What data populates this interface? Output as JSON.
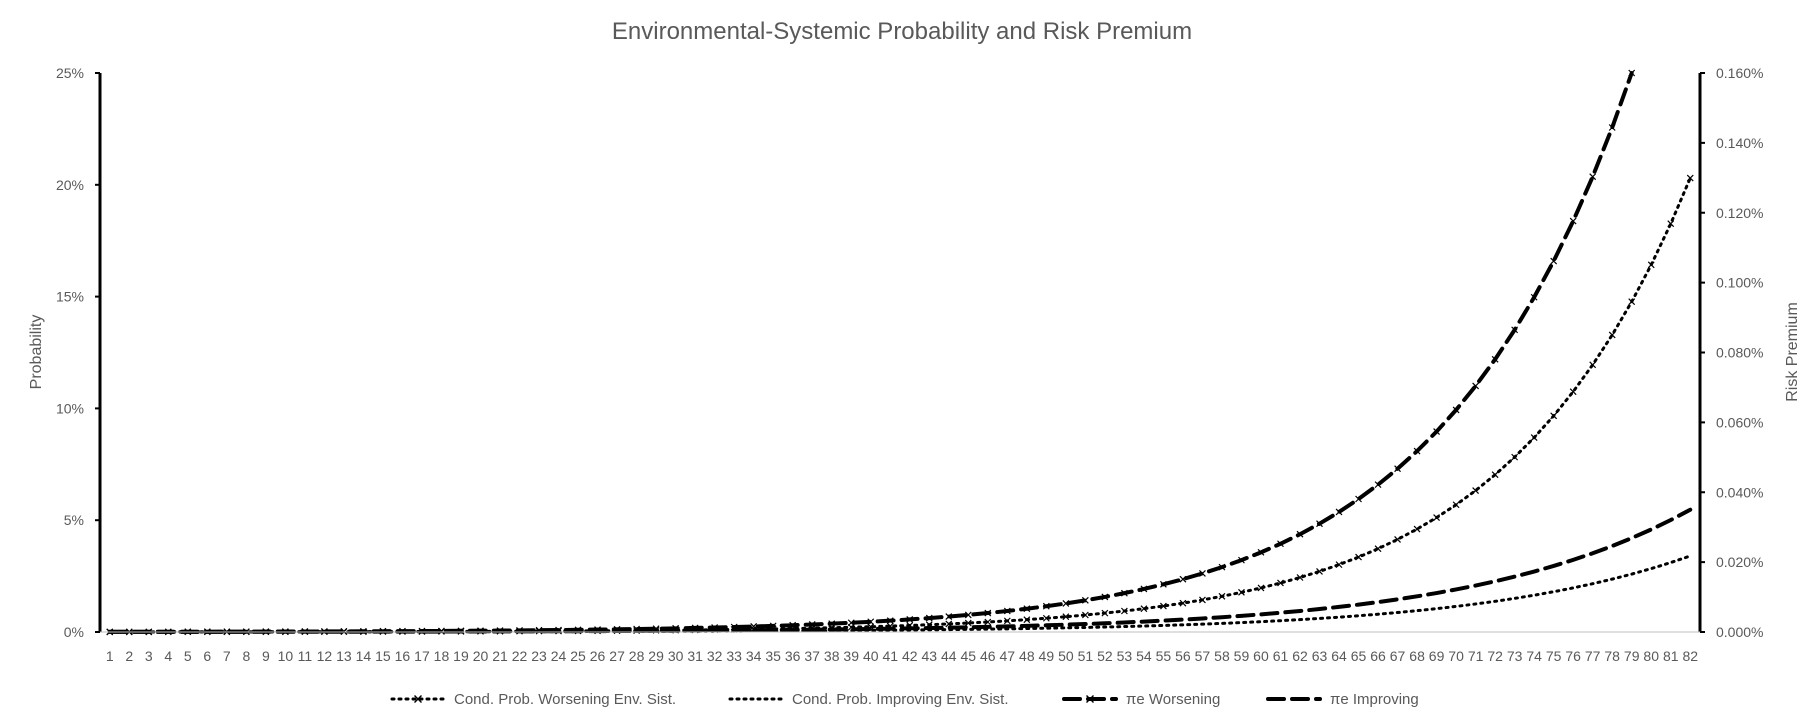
{
  "chart_data": {
    "type": "line",
    "title": "Environmental-Systemic Probability and Risk Premium",
    "xlabel": "",
    "ylabel": "Probability",
    "y2label": "Risk Premium",
    "categories": [
      "1",
      "2",
      "3",
      "4",
      "5",
      "6",
      "7",
      "8",
      "9",
      "10",
      "11",
      "12",
      "13",
      "14",
      "15",
      "16",
      "17",
      "18",
      "19",
      "20",
      "21",
      "22",
      "23",
      "24",
      "25",
      "26",
      "27",
      "28",
      "29",
      "30",
      "31",
      "32",
      "33",
      "34",
      "35",
      "36",
      "37",
      "38",
      "39",
      "40",
      "41",
      "42",
      "43",
      "44",
      "45",
      "46",
      "47",
      "48",
      "49",
      "50",
      "51",
      "52",
      "53",
      "54",
      "55",
      "56",
      "57",
      "58",
      "59",
      "60",
      "61",
      "62",
      "63",
      "64",
      "65",
      "66",
      "67",
      "68",
      "69",
      "70",
      "71",
      "72",
      "73",
      "74",
      "75",
      "76",
      "77",
      "78",
      "79",
      "80",
      "81",
      "82"
    ],
    "ylim": [
      0,
      0.25
    ],
    "y2lim": [
      0,
      0.0016
    ],
    "yticks": [
      "0%",
      "5%",
      "10%",
      "15%",
      "20%",
      "25%"
    ],
    "y2ticks": [
      "0.000%",
      "0.020%",
      "0.040%",
      "0.060%",
      "0.080%",
      "0.100%",
      "0.120%",
      "0.140%",
      "0.160%"
    ],
    "legend_position": "bottom",
    "grid": false,
    "series": [
      {
        "name": "Cond. Prob. Worsening Env. Sist.",
        "axis": "left",
        "style": "dotted-x",
        "color": "#000000",
        "start": 1,
        "end": 82,
        "value_at_end": 0.203,
        "growth": 1.1118
      },
      {
        "name": "Cond. Prob. Improving Env. Sist.",
        "axis": "left",
        "style": "dotted",
        "color": "#000000",
        "start": 1,
        "end": 82,
        "value_at_end": 0.034,
        "growth": 1.095
      },
      {
        "name": "πe Worsening",
        "axis": "right",
        "style": "dashed-x",
        "color": "#000000",
        "start": 1,
        "end": 79,
        "value_at_end": 0.0016,
        "growth": 1.108
      },
      {
        "name": "πe Improving",
        "axis": "right",
        "style": "dashed",
        "color": "#000000",
        "start": 1,
        "end": 82,
        "value_at_end": 0.00035,
        "growth": 1.092
      }
    ]
  }
}
